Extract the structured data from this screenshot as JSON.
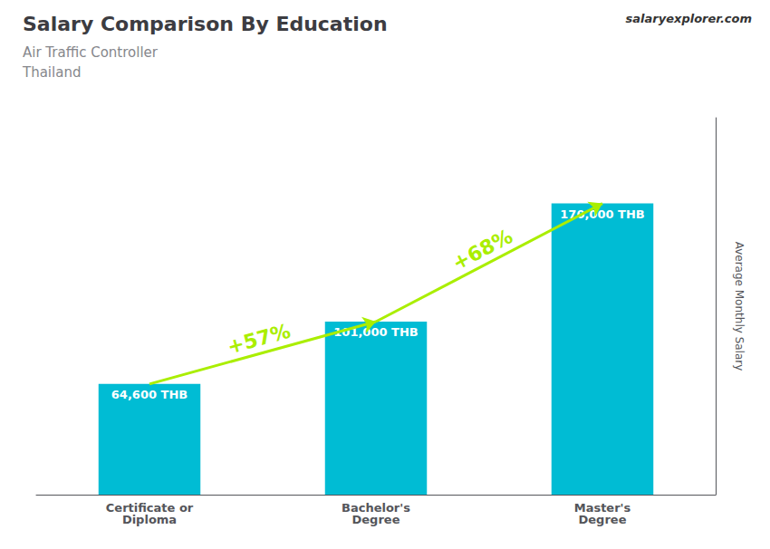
{
  "chart_data": {
    "type": "bar",
    "title": "Salary Comparison By Education",
    "subtitle": [
      "Air Traffic Controller",
      "Thailand"
    ],
    "categories": [
      "Certificate or\nDiploma",
      "Bachelor's\nDegree",
      "Master's\nDegree"
    ],
    "values": [
      64600,
      101000,
      170000
    ],
    "value_labels": [
      "64,600 THB",
      "101,000 THB",
      "170,000 THB"
    ],
    "data_labels": true,
    "color": "#00bcd4",
    "ylabel": "Average Monthly Salary",
    "ylim": [
      0,
      220000
    ],
    "tick_labels": "x",
    "grid": false,
    "annotations": [
      {
        "text": "+57%",
        "from": 0,
        "to": 1,
        "color": "#aaee00"
      },
      {
        "text": "+68%",
        "from": 1,
        "to": 2,
        "color": "#aaee00"
      },
      {
        "text": "salaryexplorer.com"
      }
    ]
  }
}
